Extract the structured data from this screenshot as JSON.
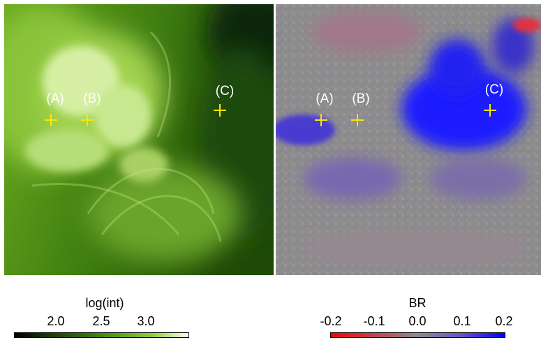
{
  "left_panel": {
    "markers": [
      {
        "label": "(A)"
      },
      {
        "label": "(B)"
      },
      {
        "label": "(C)"
      }
    ]
  },
  "right_panel": {
    "markers": [
      {
        "label": "(A)"
      },
      {
        "label": "(B)"
      },
      {
        "label": "(C)"
      }
    ]
  },
  "colorbar_left": {
    "title": "log(int)",
    "ticks": [
      "2.0",
      "2.5",
      "3.0"
    ]
  },
  "colorbar_right": {
    "title": "BR",
    "ticks": [
      "-0.2",
      "-0.1",
      "0.0",
      "0.1",
      "0.2"
    ]
  },
  "colors": {
    "marker": "#ffe600",
    "label": "#ffffff"
  }
}
